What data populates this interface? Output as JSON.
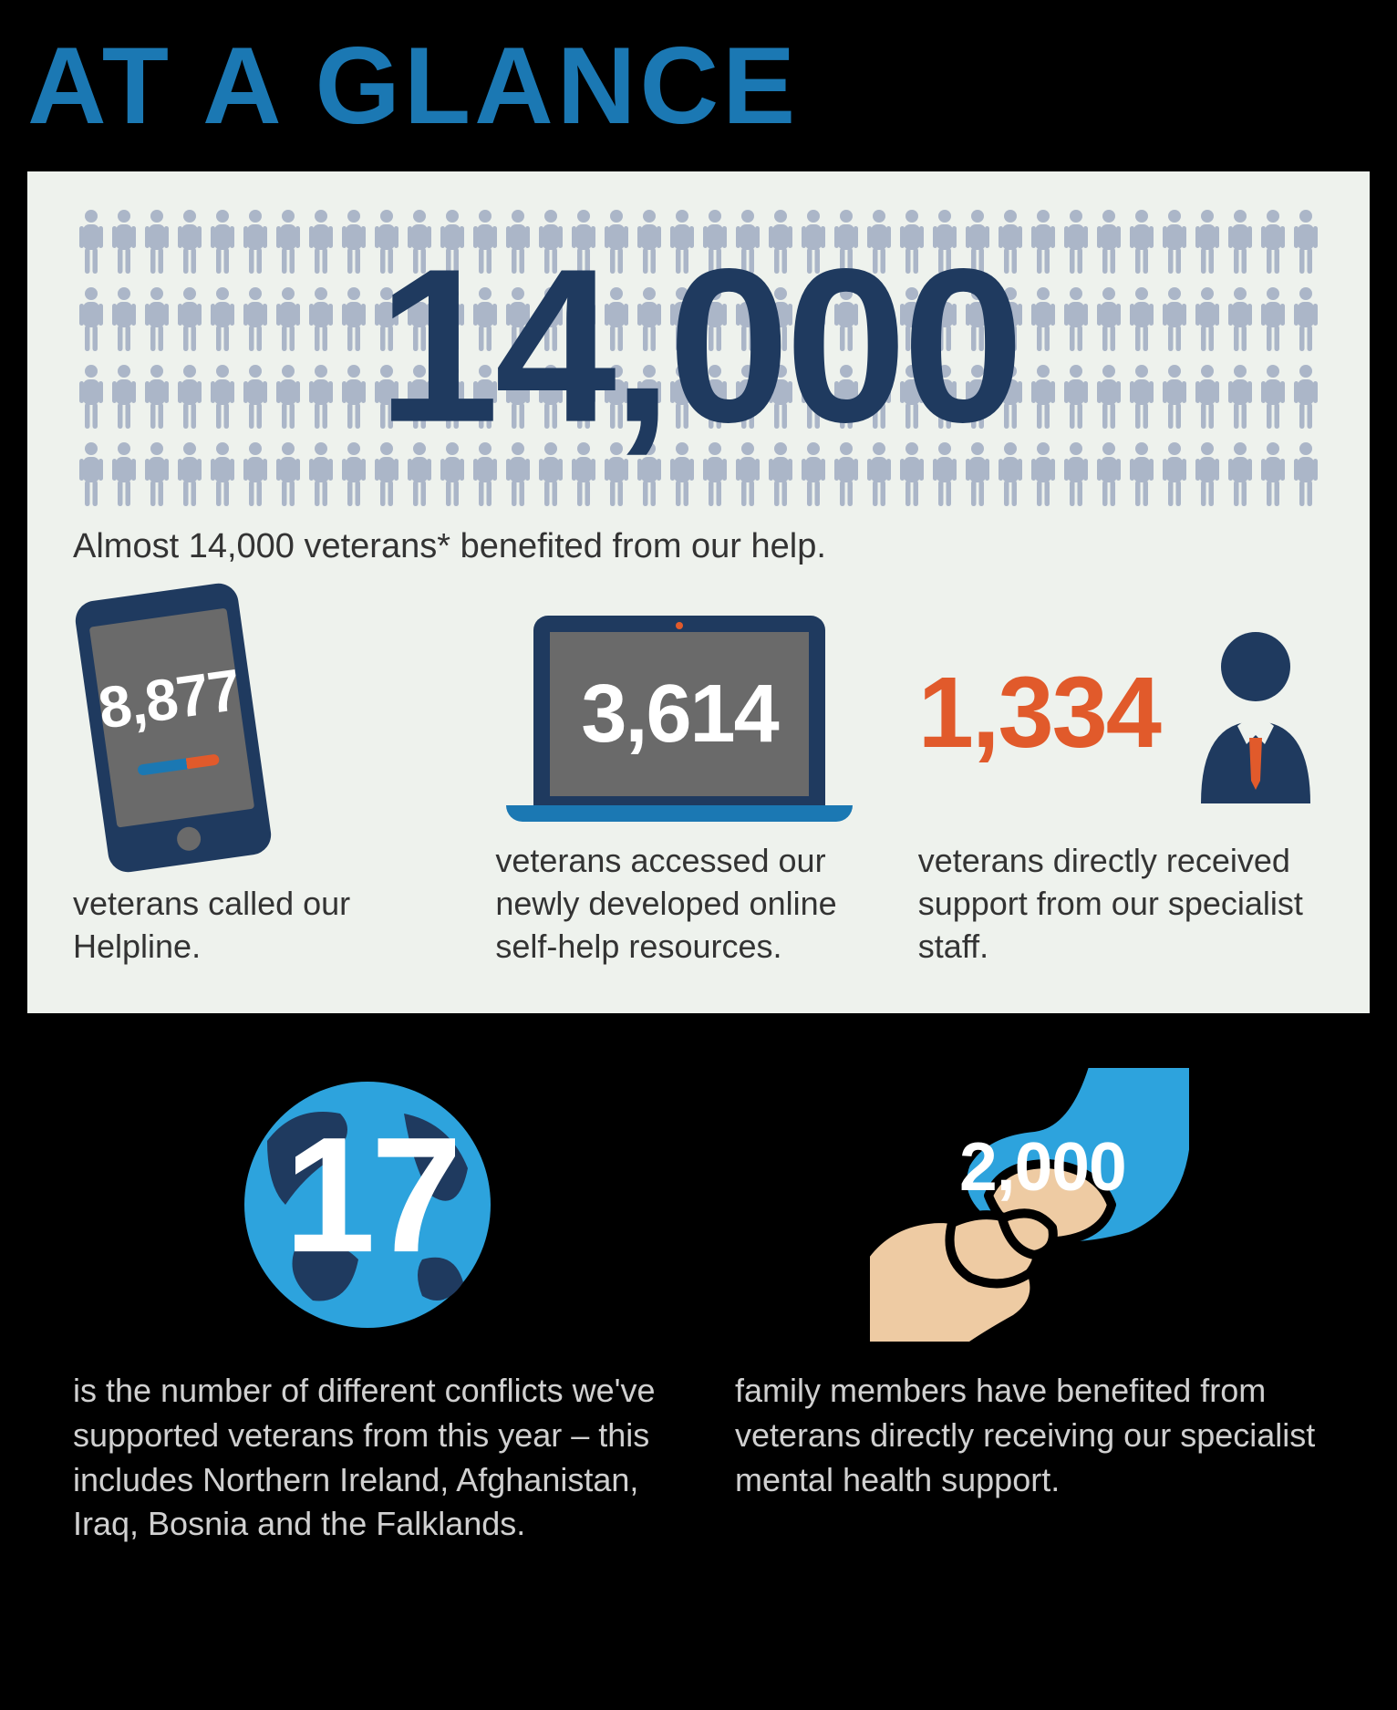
{
  "title": "AT A GLANCE",
  "colors": {
    "accent_blue": "#1b78b3",
    "dark_navy": "#1f3a5f",
    "orange": "#e15a2b",
    "panel_bg": "#eef2ed",
    "icon_grey": "#abb6c8",
    "screen_grey": "#6a6a6a",
    "text_dark": "#333333",
    "text_light": "#d0d0d0",
    "black": "#000000",
    "white": "#ffffff"
  },
  "hero": {
    "big_number": "14,000",
    "caption": "Almost 14,000 veterans* benefited from our help.",
    "people_rows": 4,
    "people_per_row": 38
  },
  "stats": [
    {
      "icon": "phone",
      "value": "8,877",
      "text": "veterans called our Helpline."
    },
    {
      "icon": "laptop",
      "value": "3,614",
      "text": "veterans accessed our newly developed online self-help resources."
    },
    {
      "icon": "person-suit",
      "value": "1,334",
      "text": "veterans directly received support from our specialist staff."
    }
  ],
  "bottom": [
    {
      "icon": "globe",
      "value": "17",
      "text": "is the number of different conflicts we've supported veterans from this year – this includes Northern Ireland, Afghanistan, Iraq, Bosnia and the Falklands."
    },
    {
      "icon": "hands",
      "value": "2,000",
      "text": "family members have benefited from veterans directly receiving our specialist mental health support."
    }
  ]
}
